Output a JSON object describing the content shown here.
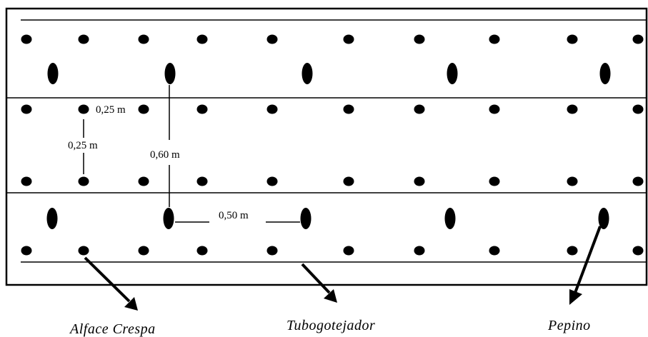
{
  "measurements": {
    "lettuce_spacing_horizontal": "0,25 m",
    "lettuce_spacing_vertical": "0,25 m",
    "cucumber_row_spacing": "0,60 m",
    "cucumber_plant_spacing": "0,50 m"
  },
  "labels": {
    "lettuce": "Alface Crespa",
    "drip_tube": "Tubogotejador",
    "cucumber": "Pepino"
  }
}
